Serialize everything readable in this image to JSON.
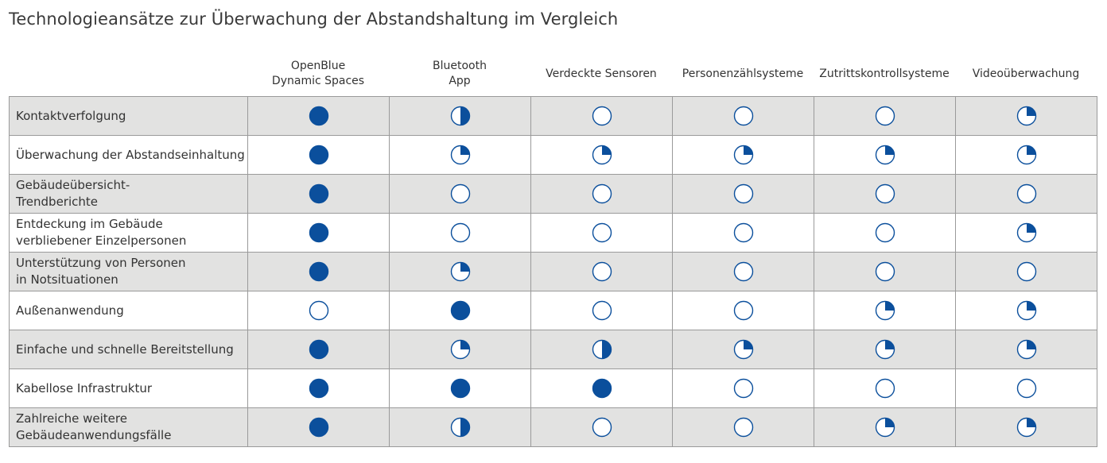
{
  "title": "Technologieansätze zur Überwachung der Abstandshaltung im Vergleich",
  "colors": {
    "fill": "#0b4f9c",
    "stroke": "#0b4f9c",
    "shaded_row": "#e2e2e1",
    "border": "#9a9a9a"
  },
  "chart_data": {
    "type": "table",
    "title": "Technologieansätze zur Überwachung der Abstandshaltung im Vergleich",
    "value_scale": "Harvey ball fill level (0 = empty, 0.25 = quarter, 0.5 = half, 1 = full)",
    "columns": [
      "OpenBlue\nDynamic Spaces",
      "Bluetooth\nApp",
      "Verdeckte Sensoren",
      "Personenzählsysteme",
      "Zutrittskontrollsysteme",
      "Videoüberwachung"
    ],
    "rows": [
      {
        "label": "Kontaktverfolgung",
        "values": [
          1,
          0.5,
          0,
          0,
          0,
          0.25
        ]
      },
      {
        "label": "Überwachung der Abstandseinhaltung",
        "values": [
          1,
          0.25,
          0.25,
          0.25,
          0.25,
          0.25
        ]
      },
      {
        "label": "Gebäudeübersicht-\nTrendberichte",
        "values": [
          1,
          0,
          0,
          0,
          0,
          0
        ]
      },
      {
        "label": "Entdeckung im Gebäude\nverbliebener Einzelpersonen",
        "values": [
          1,
          0,
          0,
          0,
          0,
          0.25
        ]
      },
      {
        "label": "Unterstützung von Personen\nin Notsituationen",
        "values": [
          1,
          0.25,
          0,
          0,
          0,
          0
        ]
      },
      {
        "label": "Außenanwendung",
        "values": [
          0,
          1,
          0,
          0,
          0.25,
          0.25
        ]
      },
      {
        "label": "Einfache und schnelle Bereitstellung",
        "values": [
          1,
          0.25,
          0.5,
          0.25,
          0.25,
          0.25
        ]
      },
      {
        "label": "Kabellose Infrastruktur",
        "values": [
          1,
          1,
          1,
          0,
          0,
          0
        ]
      },
      {
        "label": "Zahlreiche weitere\nGebäudeanwendungsfälle",
        "values": [
          1,
          0.5,
          0,
          0,
          0.25,
          0.25
        ]
      }
    ]
  }
}
